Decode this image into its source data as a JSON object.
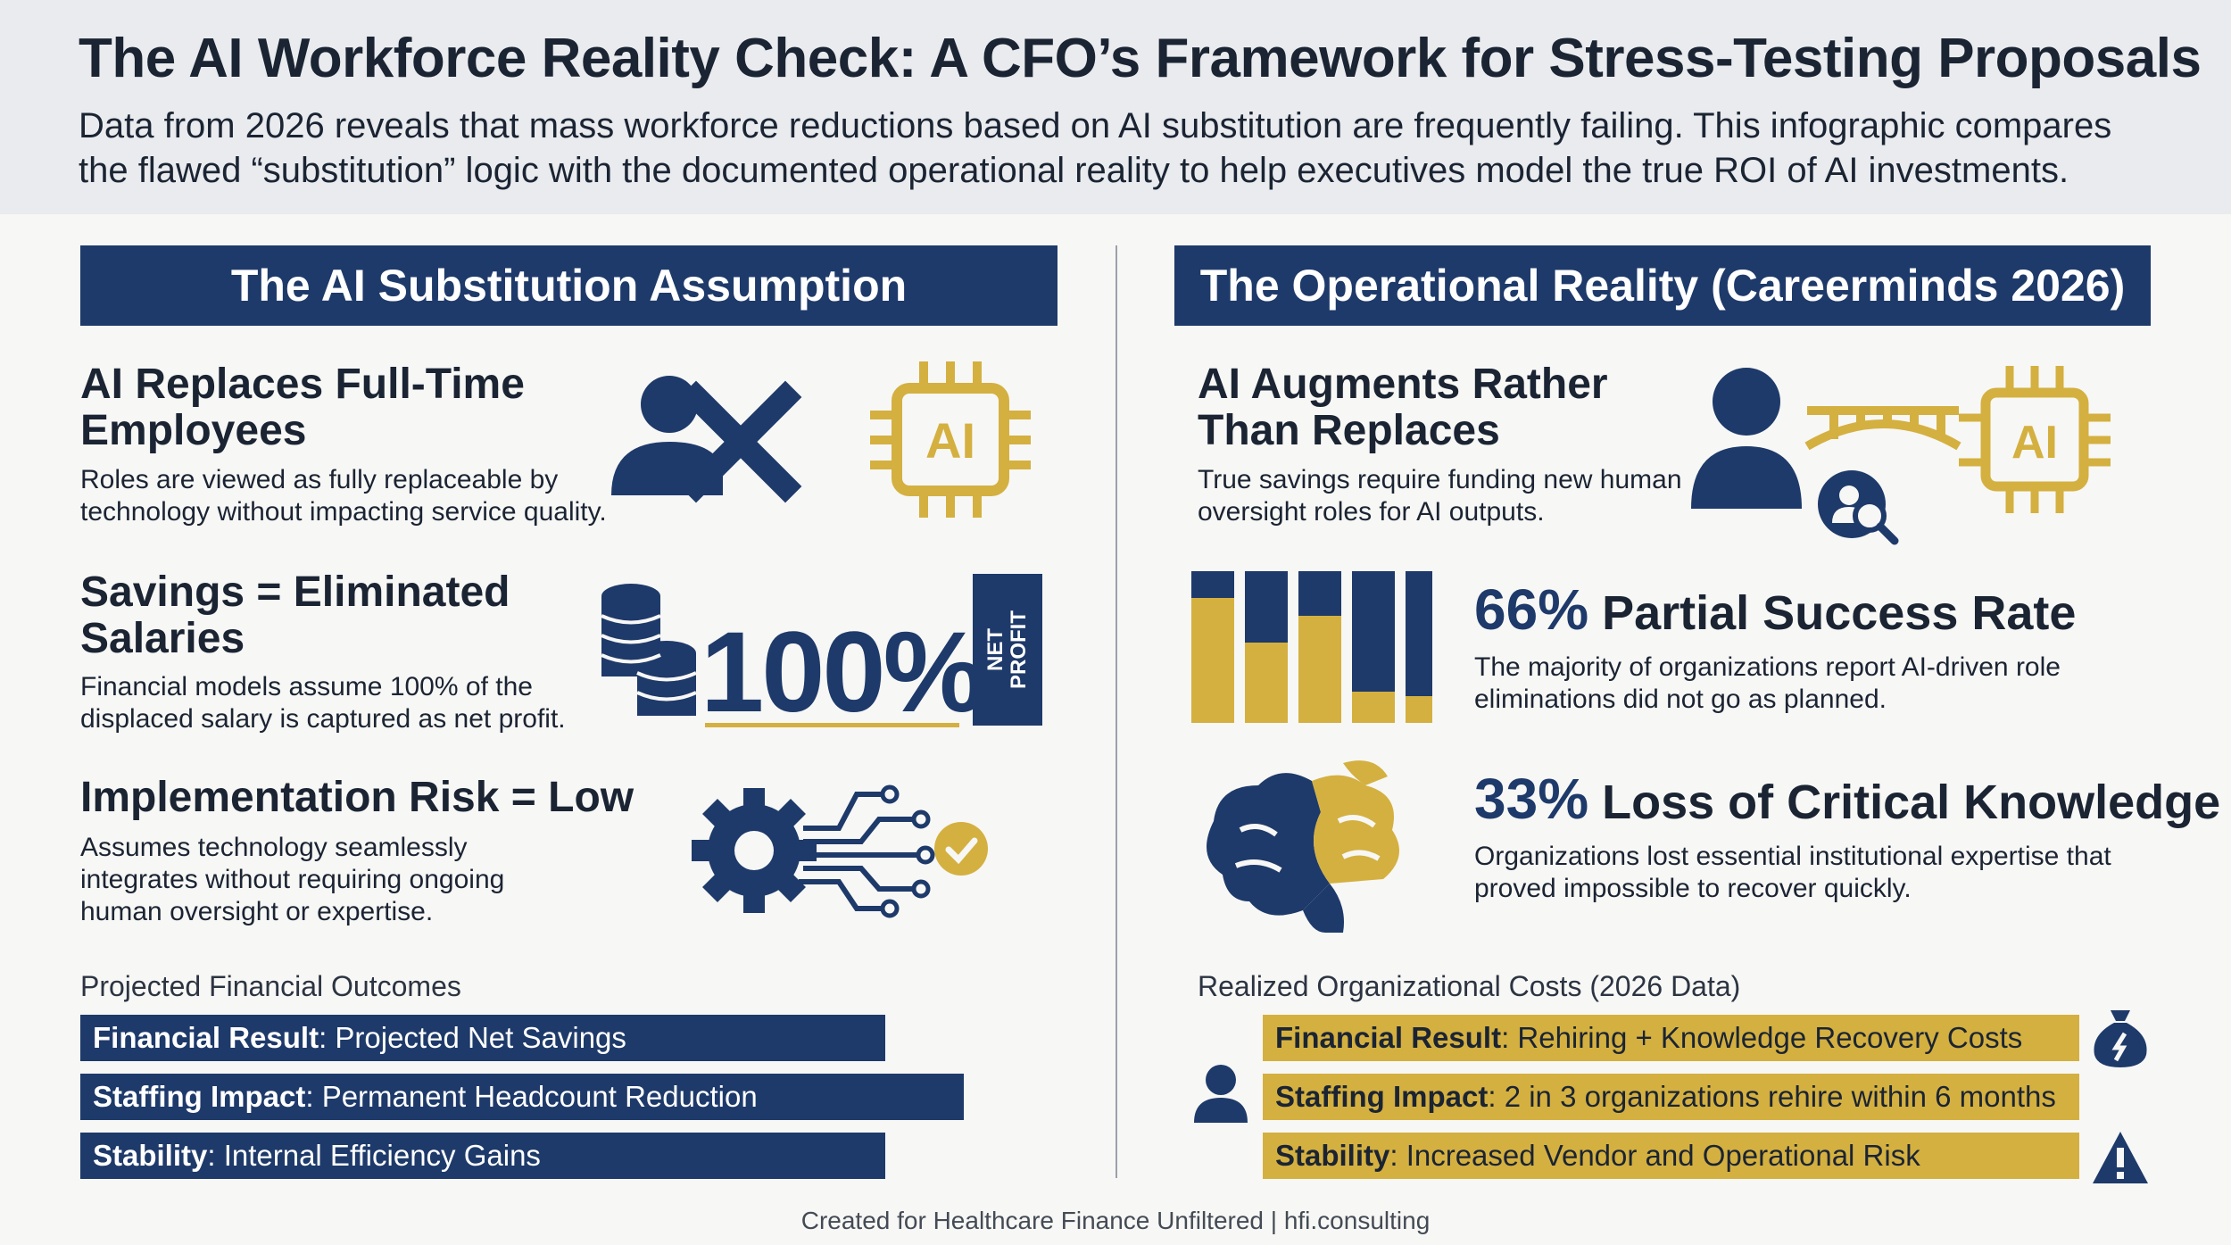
{
  "header": {
    "title": "The AI Workforce Reality Check: A CFO’s Framework for Stress-Testing Proposals",
    "subtitle": "Data from 2026 reveals that mass workforce reductions based on AI substitution are frequently failing. This infographic compares the flawed “substitution” logic with the documented operational reality to help executives model the true ROI of AI investments."
  },
  "left": {
    "banner": "The AI Substitution Assumption",
    "block1": {
      "heading": "AI Replaces Full-Time Employees",
      "text": "Roles are viewed as fully replaceable by technology without impacting service quality.",
      "chip_label": "AI"
    },
    "block2": {
      "heading": "Savings = Eliminated Salaries",
      "text": "Financial models assume 100% of the displaced salary is captured as net profit.",
      "big_value": "100%",
      "tag_line1": "NET",
      "tag_line2": "PROFIT"
    },
    "block3": {
      "heading": "Implementation Risk = Low",
      "text": "Assumes technology seamlessly integrates without requiring ongoing human oversight or expertise."
    },
    "outcomes_title": "Projected Financial Outcomes",
    "outcomes": [
      {
        "key": "Financial Result",
        "value": ": Projected Net Savings"
      },
      {
        "key": "Staffing Impact",
        "value": ": Permanent Headcount Reduction"
      },
      {
        "key": "Stability",
        "value": ": Internal Efficiency Gains"
      }
    ]
  },
  "right": {
    "banner": "The Operational Reality (Careerminds 2026)",
    "block1": {
      "heading": "AI Augments Rather Than Replaces",
      "text": "True savings require funding new human oversight roles for AI outputs.",
      "chip_label": "AI"
    },
    "stat1": {
      "pct": "66%",
      "label": " Partial Success Rate",
      "text": "The majority of organizations report AI-driven role eliminations did not go as planned."
    },
    "stat2": {
      "pct": "33%",
      "label": " Loss of Critical Knowledge",
      "text": "Organizations lost essential institutional expertise that proved impossible to recover quickly."
    },
    "costs_title": "Realized Organizational Costs (2026 Data)",
    "costs": [
      {
        "key": "Financial Result",
        "value": ": Rehiring + Knowledge Recovery Costs"
      },
      {
        "key": "Staffing Impact",
        "value": ": 2 in 3 organizations rehire within 6 months"
      },
      {
        "key": "Stability",
        "value": ": Increased Vendor and Operational Risk"
      }
    ]
  },
  "footer": "Created for Healthcare Finance Unfiltered | hfi.consulting",
  "colors": {
    "navy": "#1e3a6a",
    "gold": "#d4b040",
    "background": "#f7f7f5"
  },
  "icons": [
    "person-x-icon",
    "ai-chip-icon",
    "coin-stack-icon",
    "gear-circuit-icon",
    "check-icon",
    "person-icon",
    "bridge-icon",
    "person-search-icon",
    "bar-chart-icon",
    "brain-icon",
    "money-bag-icon",
    "warning-icon"
  ]
}
